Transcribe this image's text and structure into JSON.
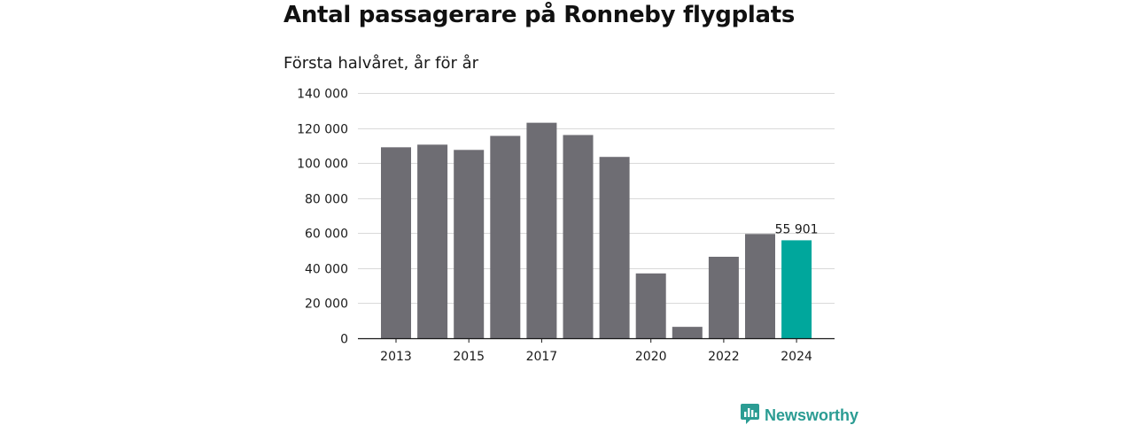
{
  "header": {
    "title": "Antal passagerare på Ronneby flygplats",
    "subtitle": "Första halvåret, år för år"
  },
  "brand": {
    "name": "Newsworthy",
    "icon": "newsworthy-logo-icon",
    "color": "#2b9c93"
  },
  "colors": {
    "bar": "#6e6d73",
    "highlight": "#00a79c",
    "grid": "#d9d9d9",
    "axis": "#1a1a1a"
  },
  "chart_data": {
    "type": "bar",
    "title": "Antal passagerare på Ronneby flygplats",
    "subtitle": "Första halvåret, år för år",
    "xlabel": "",
    "ylabel": "",
    "categories": [
      "2013",
      "2014",
      "2015",
      "2016",
      "2017",
      "2018",
      "2019",
      "2020",
      "2021",
      "2022",
      "2023",
      "2024"
    ],
    "tick_labels": [
      "2013",
      "",
      "2015",
      "",
      "2017",
      "",
      "",
      "2020",
      "",
      "2022",
      "",
      "2024"
    ],
    "values": [
      109000,
      110500,
      107500,
      115500,
      123000,
      116000,
      103500,
      37000,
      6500,
      46500,
      59500,
      55901
    ],
    "highlight_index": 11,
    "data_labels": [
      {
        "index": 11,
        "text": "55 901"
      }
    ],
    "ylim": [
      0,
      140000
    ],
    "yticks": [
      0,
      20000,
      40000,
      60000,
      80000,
      100000,
      120000,
      140000
    ],
    "ytick_labels": [
      "0",
      "20 000",
      "40 000",
      "60 000",
      "80 000",
      "100 000",
      "120 000",
      "140 000"
    ],
    "grid": true,
    "legend": "none"
  }
}
